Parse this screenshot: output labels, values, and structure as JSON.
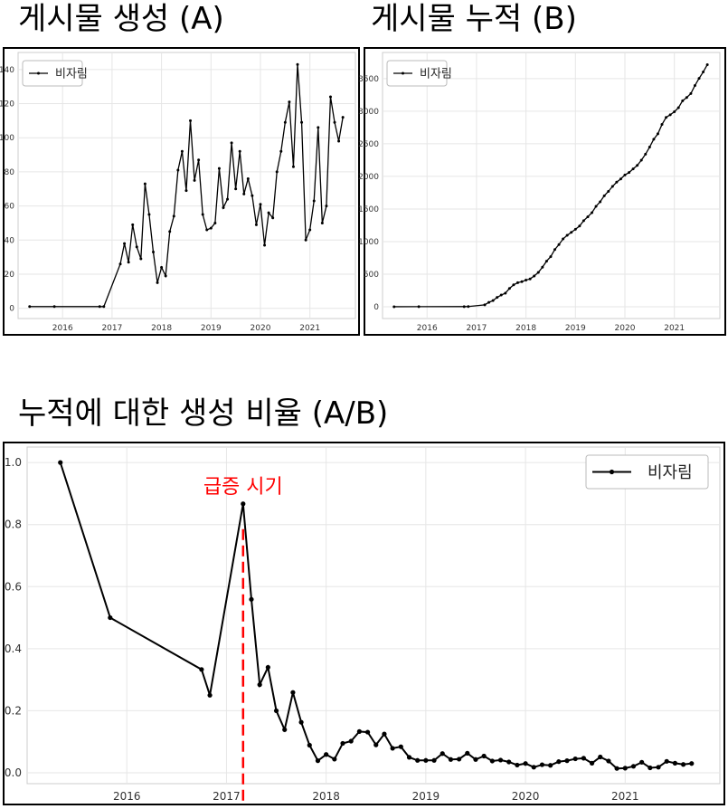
{
  "titles": {
    "a": "게시물 생성 (A)",
    "b": "게시물 누적 (B)",
    "c": "누적에 대한 생성 비율 (A/B)"
  },
  "chart_data": [
    {
      "type": "line",
      "title": "게시물 생성 (A)",
      "series": [
        {
          "name": "비자림",
          "color": "#000000"
        }
      ],
      "x": [
        "2015-05",
        "2015-11",
        "2016-10",
        "2016-11",
        "2017-03",
        "2017-04",
        "2017-05",
        "2017-06",
        "2017-07",
        "2017-08",
        "2017-09",
        "2017-10",
        "2017-11",
        "2017-12",
        "2018-01",
        "2018-02",
        "2018-03",
        "2018-04",
        "2018-05",
        "2018-06",
        "2018-07",
        "2018-08",
        "2018-09",
        "2018-10",
        "2018-11",
        "2018-12",
        "2019-01",
        "2019-02",
        "2019-03",
        "2019-04",
        "2019-05",
        "2019-06",
        "2019-07",
        "2019-08",
        "2019-09",
        "2019-10",
        "2019-11",
        "2019-12",
        "2020-01",
        "2020-02",
        "2020-03",
        "2020-04",
        "2020-05",
        "2020-06",
        "2020-07",
        "2020-08",
        "2020-09",
        "2020-10",
        "2020-11",
        "2020-12",
        "2021-01",
        "2021-02",
        "2021-03",
        "2021-04",
        "2021-05",
        "2021-06",
        "2021-07",
        "2021-08",
        "2021-09"
      ],
      "values": [
        1,
        1,
        1,
        1,
        26,
        38,
        27,
        49,
        36,
        29,
        73,
        55,
        33,
        15,
        24,
        19,
        45,
        54,
        81,
        92,
        69,
        110,
        75,
        87,
        55,
        46,
        47,
        50,
        82,
        59,
        64,
        97,
        70,
        92,
        67,
        76,
        66,
        49,
        61,
        37,
        56,
        53,
        80,
        92,
        109,
        121,
        83,
        143,
        109,
        40,
        46,
        63,
        106,
        50,
        60,
        124,
        109,
        98,
        112
      ],
      "xticks": [
        "2016",
        "2017",
        "2018",
        "2019",
        "2020",
        "2021"
      ],
      "yticks": [
        "0",
        "20",
        "40",
        "60",
        "80",
        "100",
        "120",
        "140"
      ],
      "ylim": [
        -6,
        150
      ],
      "xlim": [
        2015.1,
        2021.92
      ],
      "grid": true,
      "legend": "top-left"
    },
    {
      "type": "line",
      "title": "게시물 누적 (B)",
      "series": [
        {
          "name": "비자림",
          "color": "#000000"
        }
      ],
      "x": [
        "2015-05",
        "2015-11",
        "2016-10",
        "2016-11",
        "2017-03",
        "2017-04",
        "2017-05",
        "2017-06",
        "2017-07",
        "2017-08",
        "2017-09",
        "2017-10",
        "2017-11",
        "2017-12",
        "2018-01",
        "2018-02",
        "2018-03",
        "2018-04",
        "2018-05",
        "2018-06",
        "2018-07",
        "2018-08",
        "2018-09",
        "2018-10",
        "2018-11",
        "2018-12",
        "2019-01",
        "2019-02",
        "2019-03",
        "2019-04",
        "2019-05",
        "2019-06",
        "2019-07",
        "2019-08",
        "2019-09",
        "2019-10",
        "2019-11",
        "2019-12",
        "2020-01",
        "2020-02",
        "2020-03",
        "2020-04",
        "2020-05",
        "2020-06",
        "2020-07",
        "2020-08",
        "2020-09",
        "2020-10",
        "2020-11",
        "2020-12",
        "2021-01",
        "2021-02",
        "2021-03",
        "2021-04",
        "2021-05",
        "2021-06",
        "2021-07",
        "2021-08",
        "2021-09"
      ],
      "values": [
        1,
        2,
        3,
        4,
        30,
        68,
        95,
        144,
        180,
        209,
        282,
        337,
        370,
        385,
        409,
        428,
        473,
        527,
        608,
        700,
        769,
        879,
        954,
        1041,
        1096,
        1142,
        1189,
        1239,
        1321,
        1380,
        1444,
        1541,
        1611,
        1703,
        1770,
        1846,
        1912,
        1961,
        2022,
        2059,
        2115,
        2168,
        2248,
        2340,
        2449,
        2570,
        2653,
        2796,
        2905,
        2945,
        2991,
        3054,
        3160,
        3210,
        3270,
        3394,
        3503,
        3601,
        3713
      ],
      "xticks": [
        "2016",
        "2017",
        "2018",
        "2019",
        "2020",
        "2021"
      ],
      "yticks": [
        "0",
        "500",
        "1000",
        "1500",
        "2000",
        "2500",
        "3000",
        "3500"
      ],
      "ylim": [
        -180,
        3900
      ],
      "xlim": [
        2015.1,
        2021.92
      ],
      "grid": true,
      "legend": "top-left"
    },
    {
      "type": "line",
      "title": "누적에 대한 생성 비율 (A/B)",
      "series": [
        {
          "name": "비자림",
          "color": "#000000"
        }
      ],
      "x": [
        "2015-05",
        "2015-11",
        "2016-10",
        "2016-11",
        "2017-03",
        "2017-04",
        "2017-05",
        "2017-06",
        "2017-07",
        "2017-08",
        "2017-09",
        "2017-10",
        "2017-11",
        "2017-12",
        "2018-01",
        "2018-02",
        "2018-03",
        "2018-04",
        "2018-05",
        "2018-06",
        "2018-07",
        "2018-08",
        "2018-09",
        "2018-10",
        "2018-11",
        "2018-12",
        "2019-01",
        "2019-02",
        "2019-03",
        "2019-04",
        "2019-05",
        "2019-06",
        "2019-07",
        "2019-08",
        "2019-09",
        "2019-10",
        "2019-11",
        "2019-12",
        "2020-01",
        "2020-02",
        "2020-03",
        "2020-04",
        "2020-05",
        "2020-06",
        "2020-07",
        "2020-08",
        "2020-09",
        "2020-10",
        "2020-11",
        "2020-12",
        "2021-01",
        "2021-02",
        "2021-03",
        "2021-04",
        "2021-05",
        "2021-06",
        "2021-07",
        "2021-08",
        "2021-09"
      ],
      "values": [
        1.0,
        0.5,
        0.333,
        0.25,
        0.867,
        0.559,
        0.284,
        0.34,
        0.2,
        0.139,
        0.259,
        0.163,
        0.089,
        0.039,
        0.059,
        0.044,
        0.095,
        0.102,
        0.133,
        0.131,
        0.09,
        0.125,
        0.079,
        0.084,
        0.05,
        0.04,
        0.04,
        0.04,
        0.062,
        0.043,
        0.044,
        0.063,
        0.043,
        0.054,
        0.038,
        0.041,
        0.035,
        0.025,
        0.03,
        0.018,
        0.026,
        0.024,
        0.036,
        0.039,
        0.045,
        0.047,
        0.031,
        0.051,
        0.038,
        0.014,
        0.015,
        0.021,
        0.034,
        0.016,
        0.018,
        0.037,
        0.031,
        0.027,
        0.03
      ],
      "xticks": [
        "2016",
        "2017",
        "2018",
        "2019",
        "2020",
        "2021"
      ],
      "yticks": [
        "0.0",
        "0.2",
        "0.4",
        "0.6",
        "0.8",
        "1.0"
      ],
      "ylim": [
        -0.035,
        1.05
      ],
      "xlim": [
        2015.0,
        2021.95
      ],
      "grid": true,
      "legend": "top-right",
      "annotation": {
        "text": "급증 시기",
        "x": "2017-03",
        "color": "#ff0000",
        "style": "dashed vertical line"
      }
    }
  ]
}
